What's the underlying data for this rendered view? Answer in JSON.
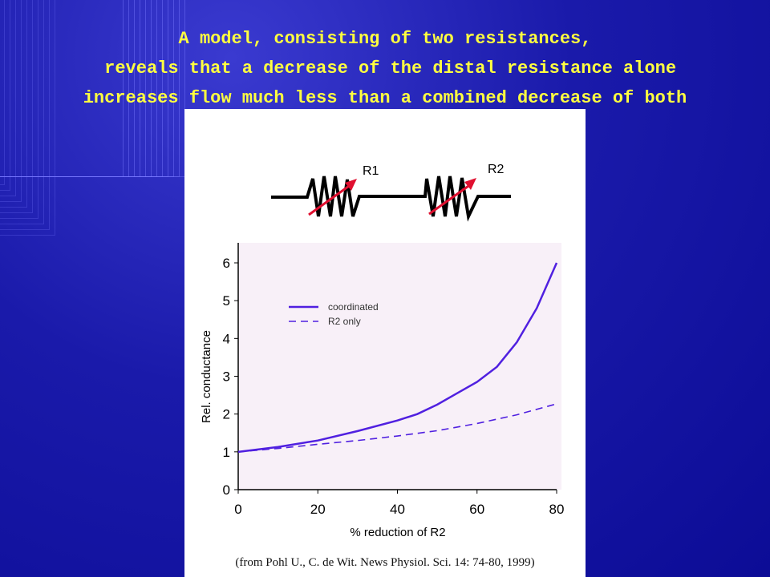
{
  "title": {
    "line1": "A model, consisting of two resistances,",
    "line2": " reveals that a decrease of the distal resistance alone",
    "line3": "increases flow much less than a combined decrease of both"
  },
  "diagram": {
    "r1_label": "R1",
    "r2_label": "R2"
  },
  "citation": "(from Pohl U., C. de Wit. News Physiol. Sci. 14: 74-80, 1999)",
  "colors": {
    "line": "#5020e0",
    "plot_bg": "#f8f0f8",
    "arrow": "#e01030",
    "title": "#ffff40"
  },
  "chart_data": {
    "type": "line",
    "title": "",
    "xlabel": "% reduction of R2",
    "ylabel": "Rel. conductance",
    "xlim": [
      0,
      80
    ],
    "ylim": [
      0,
      6
    ],
    "xticks": [
      "0",
      "20",
      "40",
      "60",
      "80"
    ],
    "yticks": [
      "0",
      "1",
      "2",
      "3",
      "4",
      "5",
      "6"
    ],
    "legend": {
      "placement": "top-left",
      "entries": [
        "coordinated",
        "R2 only"
      ]
    },
    "series": [
      {
        "name": "coordinated",
        "style": "solid",
        "x": [
          0,
          10,
          20,
          30,
          40,
          45,
          50,
          55,
          60,
          65,
          70,
          75,
          80
        ],
        "y": [
          1,
          1.13,
          1.3,
          1.55,
          1.83,
          2.0,
          2.25,
          2.55,
          2.85,
          3.25,
          3.9,
          4.8,
          6.0
        ]
      },
      {
        "name": "R2 only",
        "style": "dashed",
        "x": [
          0,
          10,
          20,
          30,
          40,
          50,
          60,
          70,
          80
        ],
        "y": [
          1,
          1.09,
          1.2,
          1.3,
          1.42,
          1.56,
          1.75,
          1.98,
          2.27
        ]
      }
    ]
  }
}
